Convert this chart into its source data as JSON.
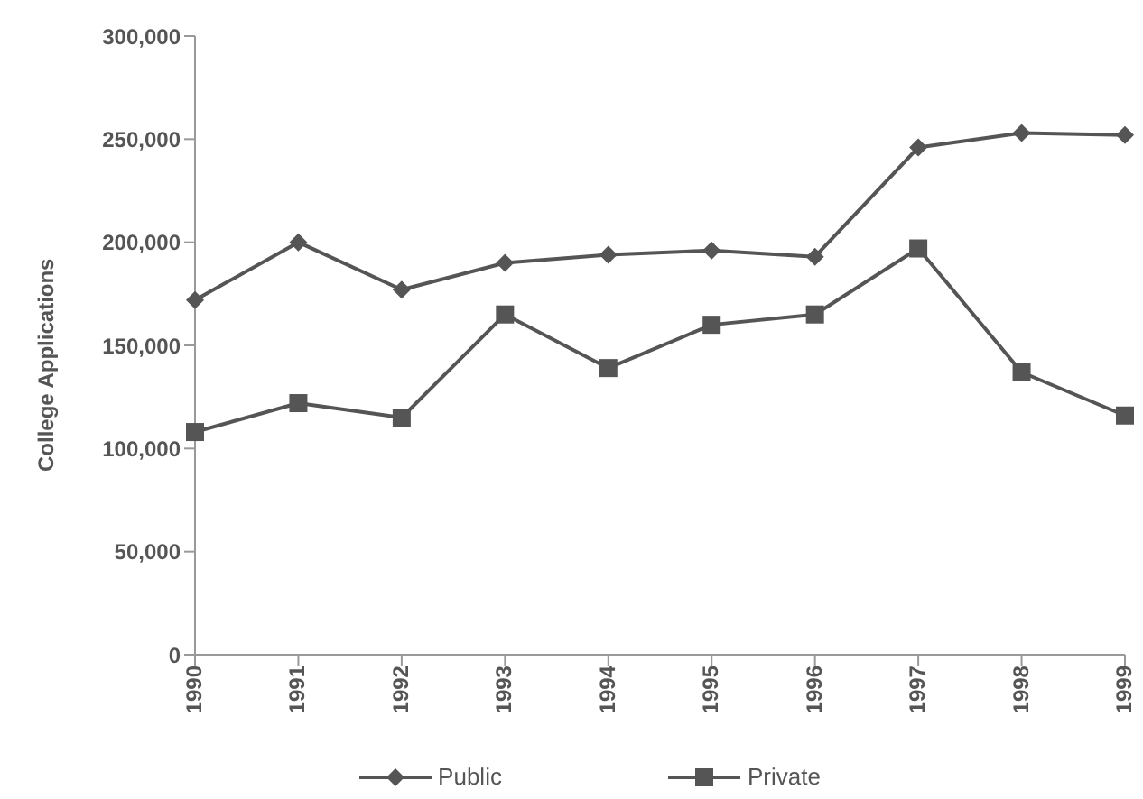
{
  "chart_data": {
    "type": "line",
    "ylabel": "College Applications",
    "categories": [
      "1990",
      "1991",
      "1992",
      "1993",
      "1994",
      "1995",
      "1996",
      "1997",
      "1998",
      "1999"
    ],
    "series": [
      {
        "name": "Public",
        "color": "#555555",
        "marker": "diamond",
        "values": [
          172000,
          200000,
          177000,
          190000,
          194000,
          196000,
          193000,
          246000,
          253000,
          252000
        ]
      },
      {
        "name": "Private",
        "color": "#555555",
        "marker": "square",
        "values": [
          108000,
          122000,
          115000,
          165000,
          139000,
          160000,
          165000,
          197000,
          137000,
          116000
        ]
      }
    ],
    "ylim": [
      0,
      300000
    ],
    "yticks": [
      {
        "value": 0,
        "label": "0"
      },
      {
        "value": 50000,
        "label": "50,000"
      },
      {
        "value": 100000,
        "label": "100,000"
      },
      {
        "value": 150000,
        "label": "150,000"
      },
      {
        "value": 200000,
        "label": "200,000"
      },
      {
        "value": 250000,
        "label": "250,000"
      },
      {
        "value": 300000,
        "label": "300,000"
      }
    ],
    "grid": false,
    "legend": "bottom"
  }
}
